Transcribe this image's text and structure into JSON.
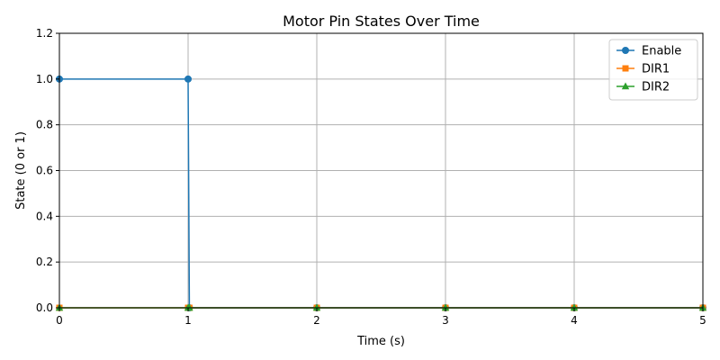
{
  "chart_data": {
    "type": "line",
    "title": "Motor Pin States Over Time",
    "xlabel": "Time (s)",
    "ylabel": "State (0 or 1)",
    "xlim": [
      0,
      5
    ],
    "ylim": [
      0,
      1.2
    ],
    "x_ticks": [
      "0",
      "1",
      "2",
      "3",
      "4",
      "5"
    ],
    "y_ticks": [
      "0.0",
      "0.2",
      "0.4",
      "0.6",
      "0.8",
      "1.0",
      "1.2"
    ],
    "grid": true,
    "legend_position": "top-right",
    "series": [
      {
        "name": "Enable",
        "color": "#1f77b4",
        "marker": "circle",
        "points": [
          [
            0,
            1
          ],
          [
            1,
            1
          ],
          [
            1.01,
            0
          ],
          [
            2,
            0
          ],
          [
            3,
            0
          ],
          [
            4,
            0
          ],
          [
            5,
            0
          ]
        ]
      },
      {
        "name": "DIR1",
        "color": "#ff7f0e",
        "marker": "square",
        "points": [
          [
            0,
            0
          ],
          [
            1,
            0
          ],
          [
            1.01,
            0
          ],
          [
            2,
            0
          ],
          [
            3,
            0
          ],
          [
            4,
            0
          ],
          [
            5,
            0
          ]
        ]
      },
      {
        "name": "DIR2",
        "color": "#2ca02c",
        "marker": "triangle",
        "points": [
          [
            0,
            0
          ],
          [
            1,
            0
          ],
          [
            1.01,
            0
          ],
          [
            2,
            0
          ],
          [
            3,
            0
          ],
          [
            4,
            0
          ],
          [
            5,
            0
          ]
        ]
      }
    ]
  }
}
